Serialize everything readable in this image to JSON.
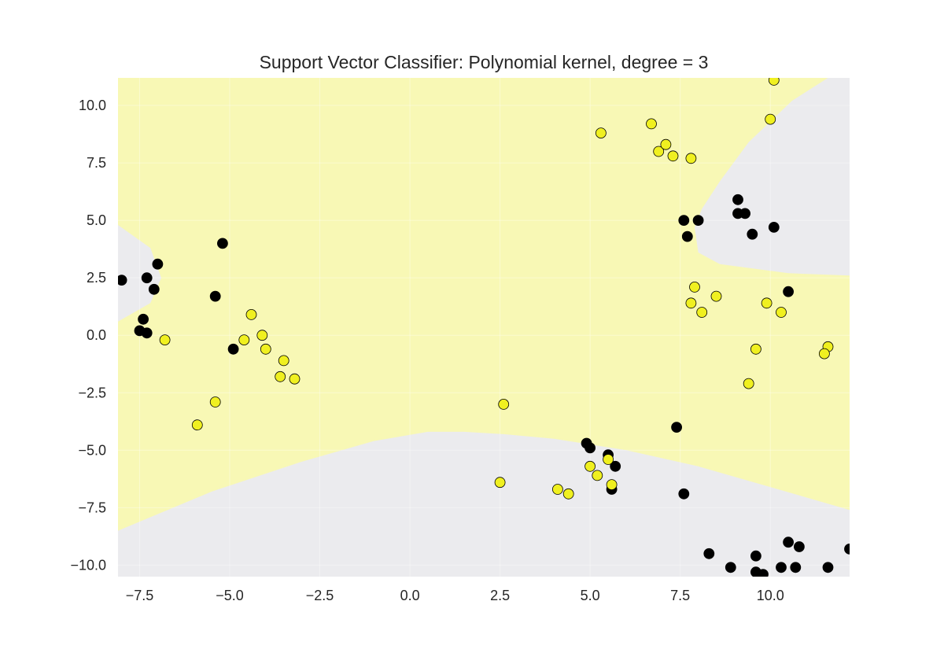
{
  "chart_data": {
    "type": "scatter",
    "title": "Support Vector Classifier: Polynomial kernel, degree = 3",
    "xlabel": "",
    "ylabel": "",
    "xlim": [
      -8.1,
      12.2
    ],
    "ylim": [
      -10.5,
      11.2
    ],
    "x_ticks": [
      -7.5,
      -5.0,
      -2.5,
      0.0,
      2.5,
      5.0,
      7.5,
      10.0
    ],
    "x_tick_labels": [
      "−7.5",
      "−5.0",
      "−2.5",
      "0.0",
      "2.5",
      "5.0",
      "7.5",
      "10.0"
    ],
    "y_ticks": [
      10.0,
      7.5,
      5.0,
      2.5,
      0.0,
      -2.5,
      -5.0,
      -7.5,
      -10.0
    ],
    "y_tick_labels": [
      "10.0",
      "7.5",
      "5.0",
      "2.5",
      "0.0",
      "−2.5",
      "−5.0",
      "−7.5",
      "−10.0"
    ],
    "grid": true,
    "background_colors": {
      "yellow_region": "#f8f8b5",
      "gray_region": "#ebebee"
    },
    "decision_regions": {
      "left_gray_region": [
        [
          -8.1,
          4.8
        ],
        [
          -7.2,
          3.8
        ],
        [
          -6.9,
          2.5
        ],
        [
          -7.2,
          1.4
        ],
        [
          -8.1,
          0.6
        ]
      ],
      "top_right_gray_region": [
        [
          12.2,
          11.2
        ],
        [
          11.6,
          11.2
        ],
        [
          10.6,
          10.2
        ],
        [
          9.4,
          8.4
        ],
        [
          8.6,
          6.7
        ],
        [
          8.1,
          5.5
        ],
        [
          7.9,
          4.7
        ],
        [
          8.0,
          3.6
        ],
        [
          8.6,
          3.1
        ],
        [
          10.5,
          2.7
        ],
        [
          12.2,
          2.6
        ]
      ],
      "bottom_gray_region": [
        [
          -8.1,
          -8.5
        ],
        [
          -5.5,
          -6.8
        ],
        [
          -3.0,
          -5.5
        ],
        [
          -1.0,
          -4.6
        ],
        [
          0.5,
          -4.2
        ],
        [
          1.5,
          -4.2
        ],
        [
          2.6,
          -4.3
        ],
        [
          4.0,
          -4.5
        ],
        [
          6.0,
          -5.0
        ],
        [
          8.0,
          -5.7
        ],
        [
          10.0,
          -6.6
        ],
        [
          12.2,
          -7.6
        ],
        [
          12.2,
          -10.5
        ],
        [
          -8.1,
          -10.5
        ]
      ]
    },
    "series": [
      {
        "class": "black",
        "color": "#000000",
        "points": [
          [
            -8.0,
            2.4
          ],
          [
            -7.3,
            2.5
          ],
          [
            -7.0,
            3.1
          ],
          [
            -7.1,
            2.0
          ],
          [
            -7.4,
            0.7
          ],
          [
            -7.5,
            0.2
          ],
          [
            -7.3,
            0.1
          ],
          [
            -5.2,
            4.0
          ],
          [
            -5.4,
            1.7
          ],
          [
            -4.9,
            -0.6
          ],
          [
            7.6,
            5.0
          ],
          [
            8.0,
            5.0
          ],
          [
            7.7,
            4.3
          ],
          [
            9.1,
            5.9
          ],
          [
            9.1,
            5.3
          ],
          [
            9.3,
            5.3
          ],
          [
            9.5,
            4.4
          ],
          [
            10.1,
            4.7
          ],
          [
            10.5,
            1.9
          ],
          [
            7.4,
            -4.0
          ],
          [
            4.9,
            -4.7
          ],
          [
            5.0,
            -4.9
          ],
          [
            5.5,
            -5.2
          ],
          [
            5.7,
            -5.7
          ],
          [
            5.6,
            -6.7
          ],
          [
            7.6,
            -6.9
          ],
          [
            8.3,
            -9.5
          ],
          [
            8.9,
            -10.1
          ],
          [
            9.6,
            -9.6
          ],
          [
            9.6,
            -10.3
          ],
          [
            9.8,
            -10.4
          ],
          [
            10.3,
            -10.1
          ],
          [
            10.5,
            -9.0
          ],
          [
            10.7,
            -10.1
          ],
          [
            10.8,
            -9.2
          ],
          [
            11.6,
            -10.1
          ],
          [
            12.2,
            -9.3
          ]
        ]
      },
      {
        "class": "yellow",
        "color": "#f0f020",
        "points": [
          [
            -6.8,
            -0.2
          ],
          [
            -4.4,
            0.9
          ],
          [
            -4.6,
            -0.2
          ],
          [
            -4.1,
            0.0
          ],
          [
            -4.0,
            -0.6
          ],
          [
            -3.5,
            -1.1
          ],
          [
            -3.6,
            -1.8
          ],
          [
            -3.2,
            -1.9
          ],
          [
            -5.4,
            -2.9
          ],
          [
            -5.9,
            -3.9
          ],
          [
            2.6,
            -3.0
          ],
          [
            2.5,
            -6.4
          ],
          [
            4.1,
            -6.7
          ],
          [
            4.4,
            -6.9
          ],
          [
            5.0,
            -5.7
          ],
          [
            5.2,
            -6.1
          ],
          [
            5.5,
            -5.4
          ],
          [
            5.6,
            -6.5
          ],
          [
            5.3,
            8.8
          ],
          [
            6.7,
            9.2
          ],
          [
            6.9,
            8.0
          ],
          [
            7.1,
            8.3
          ],
          [
            7.3,
            7.8
          ],
          [
            7.8,
            7.7
          ],
          [
            10.0,
            9.4
          ],
          [
            10.1,
            11.1
          ],
          [
            7.9,
            2.1
          ],
          [
            7.8,
            1.4
          ],
          [
            8.1,
            1.0
          ],
          [
            8.5,
            1.7
          ],
          [
            9.9,
            1.4
          ],
          [
            10.3,
            1.0
          ],
          [
            9.6,
            -0.6
          ],
          [
            9.4,
            -2.1
          ],
          [
            11.6,
            -0.5
          ],
          [
            11.5,
            -0.8
          ]
        ]
      }
    ]
  }
}
